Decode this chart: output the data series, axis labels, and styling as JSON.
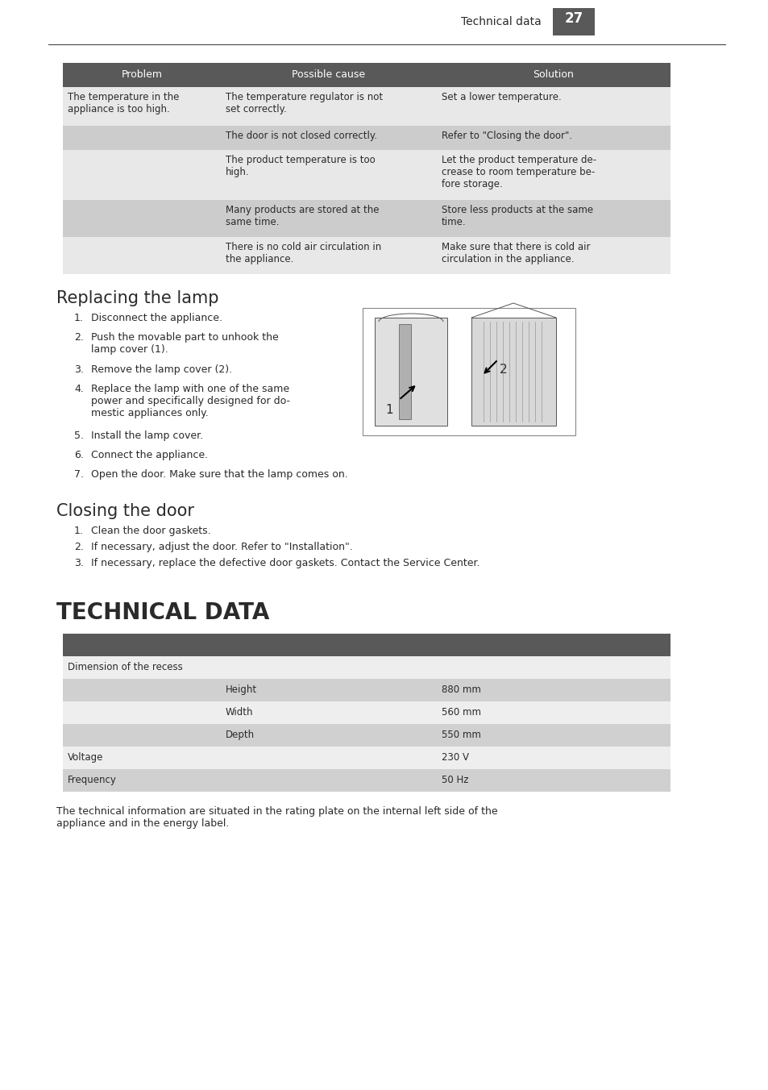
{
  "page_bg": "#ffffff",
  "header_text": "Technical data",
  "page_number": "27",
  "header_color": "#595959",
  "table1_header_bg": "#595959",
  "table1_row_light": "#e8e8e8",
  "table1_row_dark": "#cccccc",
  "table1_headers": [
    "Problem",
    "Possible cause",
    "Solution"
  ],
  "table1_rows": [
    [
      "The temperature in the\nappliance is too high.",
      "The temperature regulator is not\nset correctly.",
      "Set a lower temperature."
    ],
    [
      "",
      "The door is not closed correctly.",
      "Refer to \"Closing the door\"."
    ],
    [
      "",
      "The product temperature is too\nhigh.",
      "Let the product temperature de-\ncrease to room temperature be-\nfore storage."
    ],
    [
      "",
      "Many products are stored at the\nsame time.",
      "Store less products at the same\ntime."
    ],
    [
      "",
      "There is no cold air circulation in\nthe appliance.",
      "Make sure that there is cold air\ncirculation in the appliance."
    ]
  ],
  "section1_title": "Replacing the lamp",
  "section1_items": [
    "Disconnect the appliance.",
    "Push the movable part to unhook the\nlamp cover (1).",
    "Remove the lamp cover (2).",
    "Replace the lamp with one of the same\npower and specifically designed for do-\nmestic appliances only.",
    "Install the lamp cover.",
    "Connect the appliance.",
    "Open the door. Make sure that the lamp comes on."
  ],
  "section2_title": "Closing the door",
  "section2_items": [
    "Clean the door gaskets.",
    "If necessary, adjust the door. Refer to \"Installation\".",
    "If necessary, replace the defective door gaskets. Contact the Service Center."
  ],
  "section3_title": "TECHNICAL DATA",
  "table2_header_bg": "#595959",
  "table2_row_light": "#eeeeee",
  "table2_row_dark": "#d0d0d0",
  "table2_rows": [
    [
      "Dimension of the recess",
      "",
      ""
    ],
    [
      "",
      "Height",
      "880 mm"
    ],
    [
      "",
      "Width",
      "560 mm"
    ],
    [
      "",
      "Depth",
      "550 mm"
    ],
    [
      "Voltage",
      "",
      "230 V"
    ],
    [
      "Frequency",
      "",
      "50 Hz"
    ]
  ],
  "footer_text": "The technical information are situated in the rating plate on the internal left side of the\nappliance and in the energy label.",
  "text_color": "#2a2a2a",
  "light_text": "#ffffff"
}
